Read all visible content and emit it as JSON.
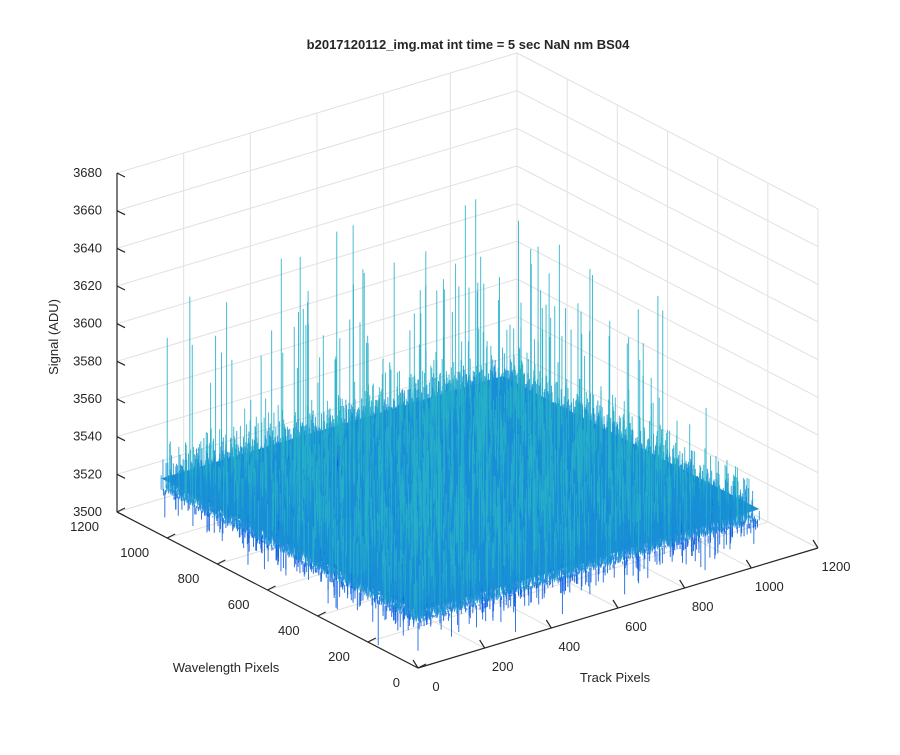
{
  "chart_data": {
    "type": "surface",
    "title": "b2017120112_img.mat int time = 5 sec  NaN nm BS04",
    "xlabel": "Track Pixels",
    "ylabel": "Wavelength Pixels",
    "zlabel": "Signal (ADU)",
    "xlim": [
      0,
      1200
    ],
    "ylim": [
      0,
      1200
    ],
    "zlim": [
      3500,
      3680
    ],
    "x_ticks": [
      "0",
      "200",
      "400",
      "600",
      "800",
      "1000",
      "1200"
    ],
    "y_ticks": [
      "0",
      "200",
      "400",
      "600",
      "800",
      "1000",
      "1200"
    ],
    "z_ticks": [
      "3500",
      "3520",
      "3540",
      "3560",
      "3580",
      "3600",
      "3620",
      "3640",
      "3660",
      "3680"
    ],
    "surface": {
      "x_range": [
        0,
        1024
      ],
      "y_range": [
        0,
        1024
      ],
      "z_mean": 3530,
      "z_min_approx": 3500,
      "z_max_approx": 3640
    },
    "grid": true,
    "colormap": "parula",
    "colors": {
      "surface_low": "#0d5fe0",
      "surface_mid": "#1a8fd6",
      "surface_high": "#27b0c8",
      "axis": "#262626",
      "grid": "#e1e1e1"
    }
  }
}
